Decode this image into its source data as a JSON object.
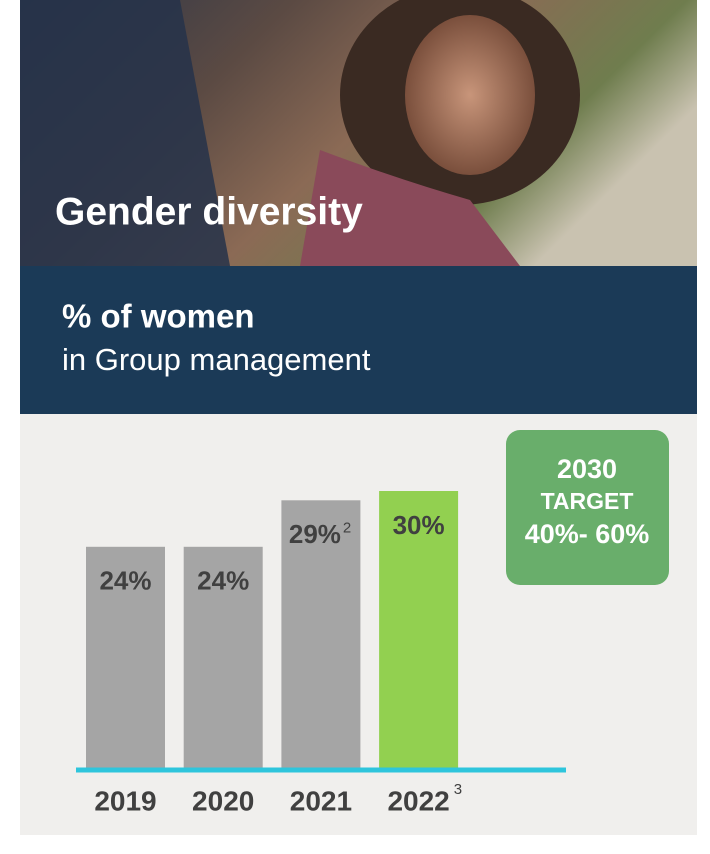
{
  "header": {
    "title": "Gender diversity"
  },
  "subheader": {
    "title": "% of women",
    "subtitle": "in Group management"
  },
  "chart_data": {
    "type": "bar",
    "categories": [
      "2019",
      "2020",
      "2021",
      "2022"
    ],
    "category_notes": [
      null,
      null,
      null,
      "3"
    ],
    "values": [
      24,
      24,
      29,
      30
    ],
    "value_labels": [
      "24%",
      "24%",
      "29%",
      "30%"
    ],
    "value_label_notes": [
      null,
      null,
      "2",
      null
    ],
    "colors": [
      "#a5a5a5",
      "#a5a5a5",
      "#a5a5a5",
      "#92d050"
    ],
    "baseline_color": "#2ec5dc"
  },
  "target": {
    "year": "2030",
    "label": "TARGET",
    "range": "40%- 60%"
  }
}
